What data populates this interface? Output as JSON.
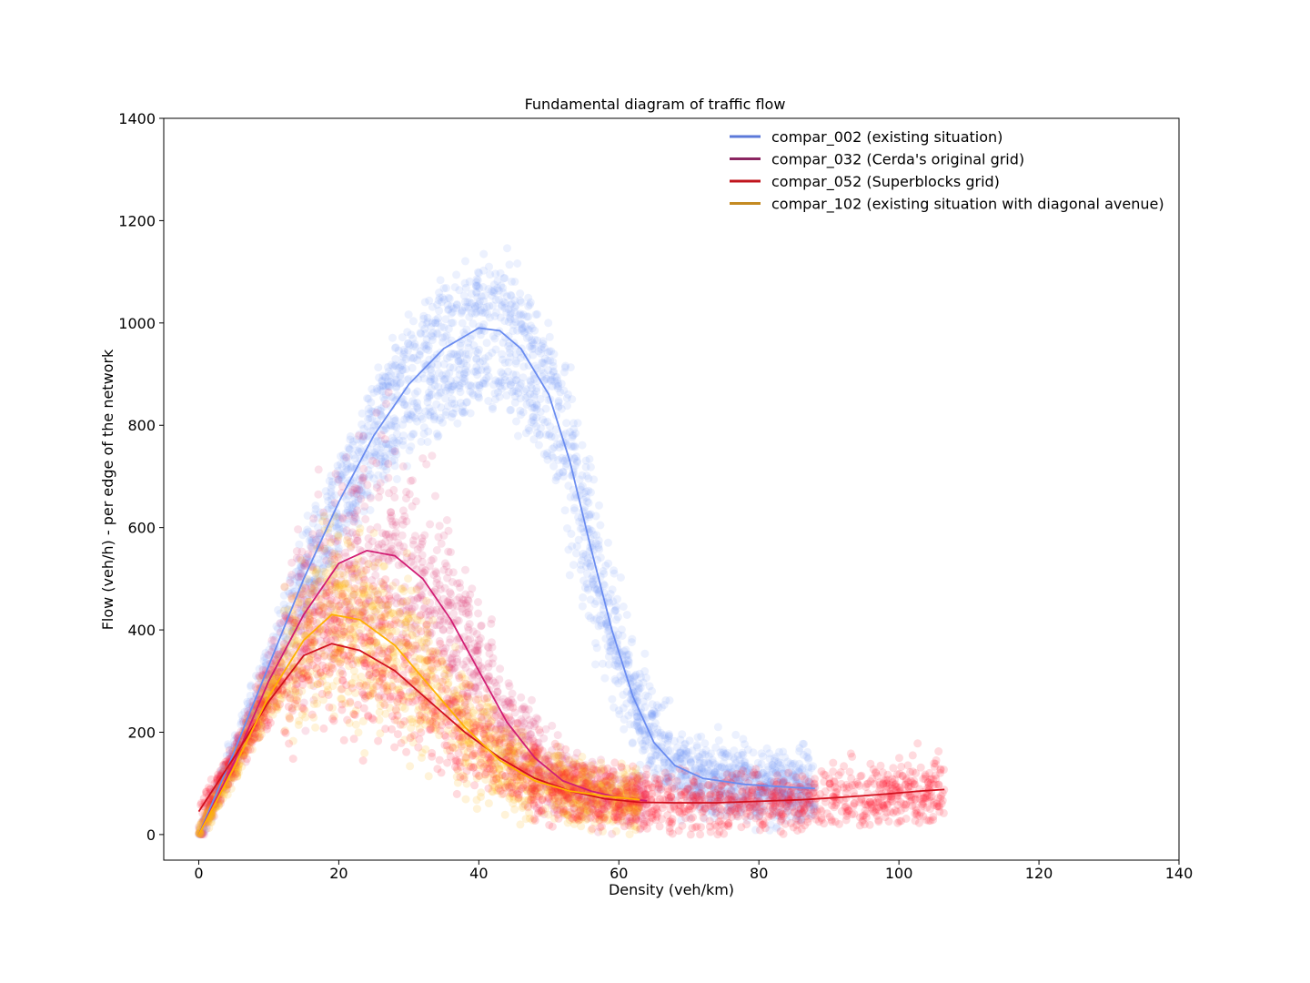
{
  "chart_data": {
    "type": "scatter",
    "title": "Fundamental diagram of traffic flow",
    "xlabel": "Density (veh/km)",
    "ylabel": "Flow (veh/h) - per edge of the network",
    "xlim": [
      -5,
      140
    ],
    "ylim": [
      -50,
      1400
    ],
    "xticks": [
      0,
      20,
      40,
      60,
      80,
      100,
      120,
      140
    ],
    "yticks": [
      0,
      200,
      400,
      600,
      800,
      1000,
      1200,
      1400
    ],
    "grid": false,
    "legend_position": "top-right",
    "series": [
      {
        "name": "compar_002 (existing situation)",
        "line_color": "#5b79d9",
        "fit_color": "#6a8cf0",
        "scatter_color": "#7b9cf5",
        "fit": [
          [
            0,
            0
          ],
          [
            5,
            160
          ],
          [
            10,
            330
          ],
          [
            15,
            500
          ],
          [
            20,
            650
          ],
          [
            25,
            780
          ],
          [
            30,
            880
          ],
          [
            35,
            950
          ],
          [
            40,
            990
          ],
          [
            43,
            985
          ],
          [
            46,
            950
          ],
          [
            50,
            860
          ],
          [
            53,
            730
          ],
          [
            56,
            560
          ],
          [
            59,
            400
          ],
          [
            62,
            270
          ],
          [
            65,
            180
          ],
          [
            68,
            135
          ],
          [
            72,
            110
          ],
          [
            78,
            98
          ],
          [
            85,
            92
          ],
          [
            88,
            90
          ]
        ],
        "scatter_range": [
          0,
          88
        ]
      },
      {
        "name": "compar_032 (Cerda's original grid)",
        "line_color": "#8b2561",
        "fit_color": "#d11d74",
        "scatter_color": "#e0447f",
        "fit": [
          [
            0,
            0
          ],
          [
            5,
            140
          ],
          [
            10,
            300
          ],
          [
            15,
            430
          ],
          [
            20,
            530
          ],
          [
            24,
            555
          ],
          [
            28,
            545
          ],
          [
            32,
            500
          ],
          [
            36,
            420
          ],
          [
            40,
            320
          ],
          [
            44,
            220
          ],
          [
            48,
            150
          ],
          [
            52,
            105
          ],
          [
            56,
            85
          ],
          [
            60,
            72
          ],
          [
            64,
            66
          ]
        ],
        "scatter_range": [
          0,
          64
        ]
      },
      {
        "name": "compar_052 (Superblocks grid)",
        "line_color": "#c0141c",
        "fit_color": "#d1101d",
        "scatter_color": "#ff1a33",
        "fit": [
          [
            0,
            45
          ],
          [
            5,
            150
          ],
          [
            10,
            260
          ],
          [
            15,
            350
          ],
          [
            19,
            373
          ],
          [
            23,
            360
          ],
          [
            28,
            320
          ],
          [
            33,
            260
          ],
          [
            38,
            200
          ],
          [
            43,
            150
          ],
          [
            48,
            110
          ],
          [
            53,
            85
          ],
          [
            58,
            70
          ],
          [
            63,
            63
          ],
          [
            68,
            62
          ],
          [
            74,
            62
          ],
          [
            80,
            65
          ],
          [
            86,
            68
          ],
          [
            92,
            73
          ],
          [
            98,
            79
          ],
          [
            103,
            85
          ],
          [
            106.5,
            88
          ]
        ],
        "scatter_range": [
          0,
          106.5
        ]
      },
      {
        "name": "compar_102 (existing situation with diagonal avenue)",
        "line_color": "#c48a22",
        "fit_color": "#ffb000",
        "scatter_color": "#ffb414",
        "fit": [
          [
            0,
            0
          ],
          [
            5,
            130
          ],
          [
            10,
            270
          ],
          [
            15,
            380
          ],
          [
            19,
            430
          ],
          [
            23,
            420
          ],
          [
            28,
            370
          ],
          [
            33,
            290
          ],
          [
            38,
            210
          ],
          [
            43,
            145
          ],
          [
            48,
            105
          ],
          [
            53,
            85
          ],
          [
            58,
            75
          ],
          [
            63,
            68
          ]
        ],
        "scatter_range": [
          0,
          63
        ]
      }
    ]
  }
}
